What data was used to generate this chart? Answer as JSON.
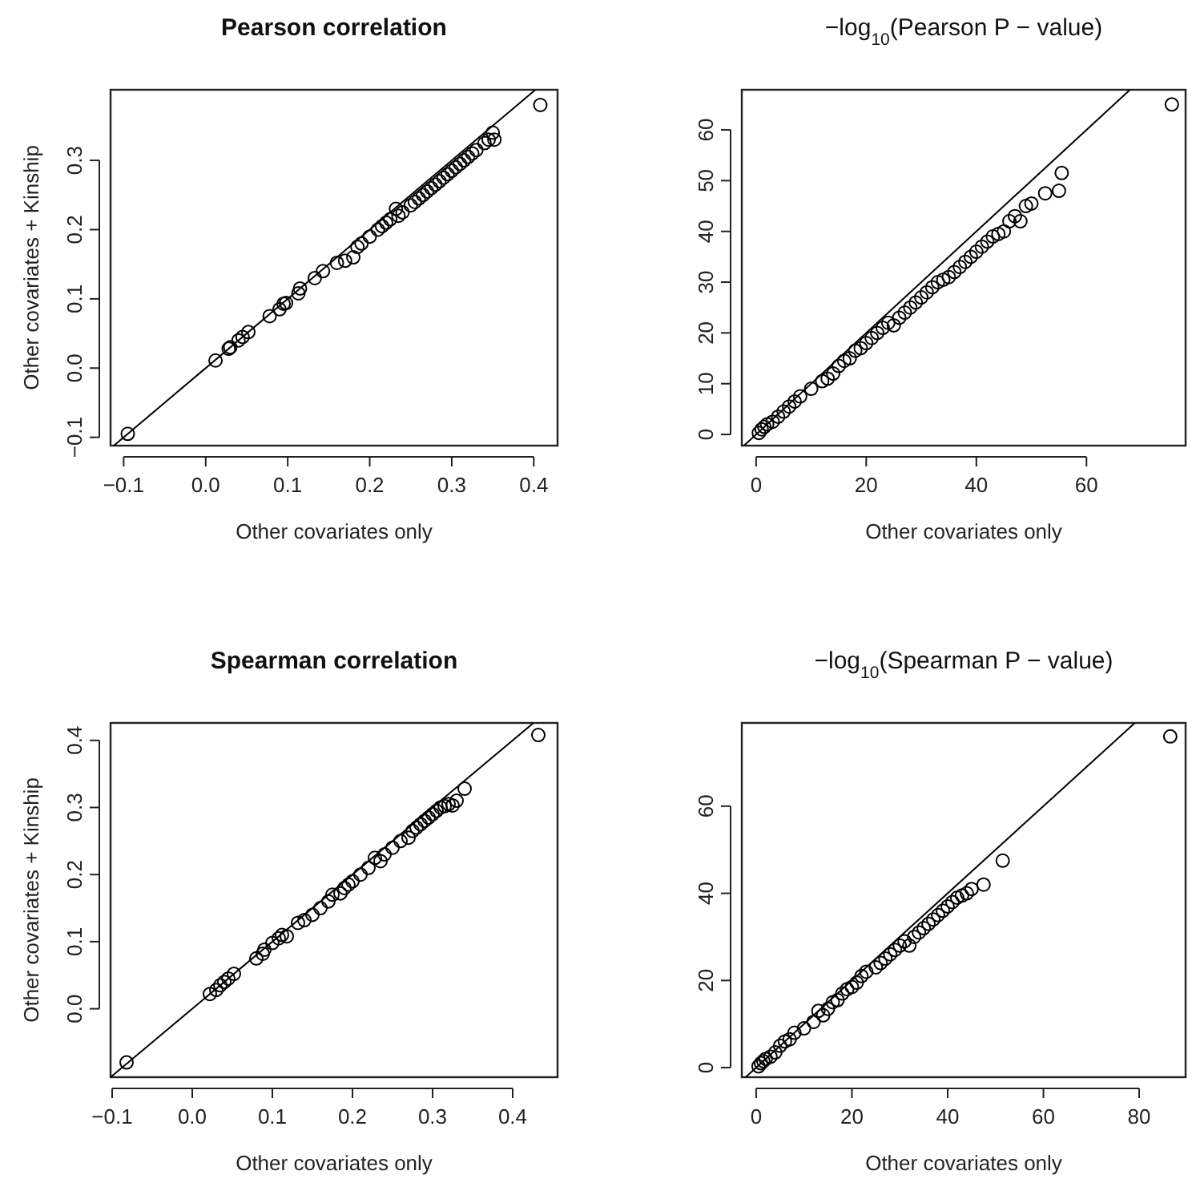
{
  "chart_data": [
    {
      "type": "scatter",
      "title": "Pearson correlation",
      "xlabel": "Other covariates only",
      "ylabel": "Other covariates + Kinship",
      "xlim": [
        -0.116,
        0.429
      ],
      "ylim": [
        -0.112,
        0.402
      ],
      "xticks": [
        -0.1,
        {
          "value": 0,
          "label": "0.0"
        },
        0.1,
        0.2,
        0.3,
        0.4
      ],
      "yticks": [
        -0.1,
        {
          "value": 0,
          "label": "0.0"
        },
        0.1,
        0.2,
        0.3
      ],
      "grid": false,
      "series": [
        {
          "marker": "circle",
          "color": "#000000",
          "x": [
            -0.095,
            0.012,
            0.028,
            0.03,
            0.04,
            0.045,
            0.052,
            0.078,
            0.09,
            0.095,
            0.098,
            0.113,
            0.115,
            0.133,
            0.143,
            0.16,
            0.17,
            0.18,
            0.185,
            0.19,
            0.2,
            0.21,
            0.215,
            0.22,
            0.225,
            0.232,
            0.235,
            0.24,
            0.25,
            0.255,
            0.26,
            0.265,
            0.27,
            0.275,
            0.28,
            0.285,
            0.29,
            0.295,
            0.3,
            0.305,
            0.31,
            0.315,
            0.32,
            0.325,
            0.33,
            0.34,
            0.345,
            0.35,
            0.352,
            0.408
          ],
          "values": [
            -0.095,
            0.011,
            0.028,
            0.03,
            0.04,
            0.045,
            0.052,
            0.075,
            0.085,
            0.093,
            0.094,
            0.108,
            0.115,
            0.13,
            0.14,
            0.152,
            0.155,
            0.16,
            0.175,
            0.18,
            0.19,
            0.2,
            0.205,
            0.21,
            0.215,
            0.23,
            0.22,
            0.225,
            0.235,
            0.24,
            0.245,
            0.25,
            0.255,
            0.26,
            0.265,
            0.27,
            0.275,
            0.28,
            0.285,
            0.29,
            0.295,
            0.3,
            0.305,
            0.31,
            0.315,
            0.325,
            0.33,
            0.34,
            0.33,
            0.38
          ]
        },
        {
          "type": "line",
          "marker": "none",
          "color": "#000000",
          "x": [
            -0.112,
            0.402
          ],
          "values": [
            -0.112,
            0.402
          ]
        }
      ]
    },
    {
      "type": "scatter",
      "title": "−log$_{10}$(Pearson P − value)",
      "xlabel": "Other covariates only",
      "xlim": [
        -2.6,
        78
      ],
      "ylim": [
        -2.2,
        67.9
      ],
      "xticks": [
        0,
        20,
        40,
        60
      ],
      "yticks": [
        0,
        10,
        20,
        30,
        40,
        50,
        60
      ],
      "grid": false,
      "series": [
        {
          "marker": "circle",
          "color": "#000000",
          "x": [
            0.5,
            1,
            1.5,
            2,
            3,
            4,
            5,
            6,
            7,
            8,
            10,
            12,
            13,
            14,
            15,
            16,
            17,
            18,
            19,
            20,
            21,
            22,
            23,
            24,
            25,
            26,
            27,
            28,
            29,
            30,
            31,
            32,
            33,
            34,
            35,
            36,
            37,
            38,
            39,
            40,
            41,
            42,
            43,
            44,
            45,
            46,
            47,
            48,
            49,
            50,
            52.5,
            55,
            55.5,
            75.5
          ],
          "values": [
            0.3,
            1,
            1.5,
            2,
            2.5,
            3.5,
            4.5,
            5.5,
            6.5,
            7.5,
            9,
            10.5,
            11,
            12,
            13.5,
            14.5,
            15,
            16.5,
            17,
            18,
            19,
            20,
            21,
            22,
            21.5,
            23,
            24,
            25,
            26,
            27,
            28,
            29,
            30,
            30.5,
            31,
            32,
            33,
            34,
            35,
            36,
            37,
            38,
            39,
            39.5,
            40,
            42,
            43,
            42,
            45,
            45.5,
            47.5,
            48,
            51.5,
            65
          ]
        },
        {
          "type": "line",
          "marker": "none",
          "color": "#000000",
          "x": [
            -2.2,
            67.9
          ],
          "values": [
            -2.2,
            67.9
          ]
        }
      ]
    },
    {
      "type": "scatter",
      "title": "Spearman correlation",
      "xlabel": "Other covariates only",
      "ylabel": "Other covariates + Kinship",
      "xlim": [
        -0.102,
        0.456
      ],
      "ylim": [
        -0.102,
        0.426
      ],
      "xticks": [
        -0.1,
        {
          "value": 0,
          "label": "0.0"
        },
        0.1,
        0.2,
        0.3,
        0.4
      ],
      "yticks": [
        {
          "value": 0,
          "label": "0.0"
        },
        0.1,
        0.2,
        0.3,
        0.4
      ],
      "grid": false,
      "series": [
        {
          "marker": "circle",
          "color": "#000000",
          "x": [
            -0.082,
            0.022,
            0.03,
            0.035,
            0.04,
            0.045,
            0.052,
            0.08,
            0.088,
            0.09,
            0.1,
            0.108,
            0.112,
            0.118,
            0.132,
            0.14,
            0.15,
            0.16,
            0.17,
            0.175,
            0.185,
            0.19,
            0.195,
            0.2,
            0.21,
            0.22,
            0.228,
            0.235,
            0.24,
            0.25,
            0.26,
            0.27,
            0.275,
            0.28,
            0.285,
            0.29,
            0.295,
            0.3,
            0.305,
            0.31,
            0.315,
            0.32,
            0.325,
            0.33,
            0.34,
            0.432
          ],
          "values": [
            -0.08,
            0.022,
            0.028,
            0.035,
            0.04,
            0.045,
            0.052,
            0.075,
            0.082,
            0.088,
            0.098,
            0.105,
            0.11,
            0.108,
            0.128,
            0.132,
            0.14,
            0.15,
            0.16,
            0.17,
            0.172,
            0.18,
            0.185,
            0.19,
            0.2,
            0.21,
            0.225,
            0.22,
            0.23,
            0.24,
            0.25,
            0.255,
            0.265,
            0.27,
            0.275,
            0.28,
            0.285,
            0.29,
            0.295,
            0.3,
            0.302,
            0.305,
            0.303,
            0.31,
            0.328,
            0.408
          ]
        },
        {
          "type": "line",
          "marker": "none",
          "color": "#000000",
          "x": [
            -0.102,
            0.426
          ],
          "values": [
            -0.102,
            0.426
          ]
        }
      ]
    },
    {
      "type": "scatter",
      "title": "−log$_{10}$(Spearman P − value)",
      "xlabel": "Other covariates only",
      "xlim": [
        -3,
        89.7
      ],
      "ylim": [
        -2.2,
        79.1
      ],
      "xticks": [
        0,
        20,
        40,
        60,
        80
      ],
      "yticks": [
        0,
        20,
        40,
        60
      ],
      "grid": false,
      "series": [
        {
          "marker": "circle",
          "color": "#000000",
          "x": [
            0.5,
            1,
            1.5,
            2,
            3,
            4,
            5,
            6,
            7,
            8,
            10,
            12,
            13,
            14,
            15,
            16,
            17,
            18,
            19,
            20,
            21,
            22,
            23,
            25,
            26,
            27,
            28,
            29,
            30,
            31,
            32,
            33,
            34,
            35,
            36,
            37,
            38,
            39,
            40,
            41,
            42,
            43,
            44,
            45,
            47.5,
            51.5,
            86.5
          ],
          "values": [
            0.3,
            1,
            1.5,
            2,
            2.5,
            3.5,
            5,
            6,
            6.5,
            8,
            9,
            10.5,
            13,
            12,
            13.5,
            15,
            15.5,
            17,
            18,
            18.5,
            19.5,
            21,
            22,
            23,
            24,
            25,
            26,
            27,
            28,
            29,
            28,
            30,
            31,
            32,
            33,
            34,
            35,
            36,
            37,
            38,
            39,
            39.5,
            40,
            41,
            42,
            47.5,
            76
          ]
        },
        {
          "type": "line",
          "marker": "none",
          "color": "#000000",
          "x": [
            -2.2,
            79.1
          ],
          "values": [
            -2.2,
            79.1
          ]
        }
      ]
    }
  ]
}
